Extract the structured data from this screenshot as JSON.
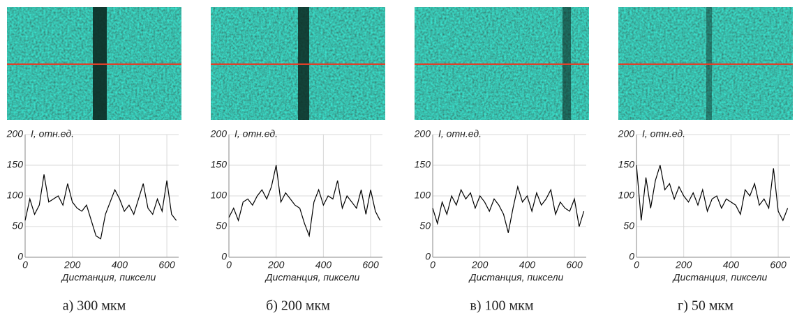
{
  "chart_data": [
    {
      "type": "line",
      "caption": "а) 300 мкм",
      "ylabel": "I, отн.ед.",
      "xlabel": "Дистанция, пиксели",
      "x": [
        0,
        20,
        40,
        60,
        80,
        100,
        120,
        140,
        160,
        180,
        200,
        220,
        240,
        260,
        280,
        300,
        320,
        340,
        360,
        380,
        400,
        420,
        440,
        460,
        480,
        500,
        520,
        540,
        560,
        580,
        600,
        620,
        640
      ],
      "series": [
        {
          "color": "#000000",
          "values": [
            60,
            95,
            70,
            85,
            135,
            90,
            95,
            100,
            85,
            120,
            90,
            80,
            75,
            85,
            60,
            35,
            30,
            70,
            90,
            110,
            95,
            75,
            85,
            70,
            95,
            120,
            80,
            70,
            95,
            75,
            125,
            70,
            60
          ]
        }
      ],
      "xlim": [
        0,
        650
      ],
      "xticks": [
        0,
        200,
        400,
        600
      ],
      "ylim": [
        0,
        200
      ],
      "yticks": [
        0,
        50,
        100,
        150,
        200
      ],
      "grid": true
    },
    {
      "type": "line",
      "caption": "б) 200 мкм",
      "ylabel": "I, отн.ед.",
      "xlabel": "Дистанция, пиксели",
      "x": [
        0,
        20,
        40,
        60,
        80,
        100,
        120,
        140,
        160,
        180,
        200,
        220,
        240,
        260,
        280,
        300,
        320,
        340,
        360,
        380,
        400,
        420,
        440,
        460,
        480,
        500,
        520,
        540,
        560,
        580,
        600,
        620,
        640
      ],
      "series": [
        {
          "color": "#000000",
          "values": [
            65,
            80,
            60,
            90,
            95,
            85,
            100,
            110,
            95,
            115,
            150,
            90,
            105,
            95,
            85,
            80,
            55,
            35,
            90,
            110,
            85,
            100,
            95,
            125,
            80,
            100,
            90,
            80,
            110,
            70,
            110,
            75,
            60
          ]
        }
      ],
      "xlim": [
        0,
        650
      ],
      "xticks": [
        0,
        200,
        400,
        600
      ],
      "ylim": [
        0,
        200
      ],
      "yticks": [
        0,
        50,
        100,
        150,
        200
      ],
      "grid": true
    },
    {
      "type": "line",
      "caption": "в) 100 мкм",
      "ylabel": "I, отн.ед.",
      "xlabel": "Дистанция, пиксели",
      "x": [
        0,
        20,
        40,
        60,
        80,
        100,
        120,
        140,
        160,
        180,
        200,
        220,
        240,
        260,
        280,
        300,
        320,
        340,
        360,
        380,
        400,
        420,
        440,
        460,
        480,
        500,
        520,
        540,
        560,
        580,
        600,
        620,
        640
      ],
      "series": [
        {
          "color": "#000000",
          "values": [
            80,
            55,
            90,
            70,
            100,
            85,
            110,
            95,
            105,
            80,
            100,
            90,
            75,
            95,
            85,
            70,
            40,
            80,
            115,
            90,
            100,
            75,
            105,
            85,
            95,
            110,
            70,
            90,
            80,
            75,
            95,
            50,
            75
          ]
        }
      ],
      "xlim": [
        0,
        650
      ],
      "xticks": [
        0,
        200,
        400,
        600
      ],
      "ylim": [
        0,
        200
      ],
      "yticks": [
        0,
        50,
        100,
        150,
        200
      ],
      "grid": true
    },
    {
      "type": "line",
      "caption": "г) 50 мкм",
      "ylabel": "I, отн.ед.",
      "xlabel": "Дистанция, пиксели",
      "x": [
        0,
        20,
        40,
        60,
        80,
        100,
        120,
        140,
        160,
        180,
        200,
        220,
        240,
        260,
        280,
        300,
        320,
        340,
        360,
        380,
        400,
        420,
        440,
        460,
        480,
        500,
        520,
        540,
        560,
        580,
        600,
        620,
        640
      ],
      "series": [
        {
          "color": "#000000",
          "values": [
            150,
            60,
            130,
            80,
            125,
            150,
            110,
            120,
            95,
            115,
            100,
            90,
            105,
            85,
            110,
            75,
            95,
            100,
            80,
            95,
            90,
            85,
            70,
            110,
            100,
            120,
            85,
            95,
            80,
            145,
            75,
            60,
            80
          ]
        }
      ],
      "xlim": [
        0,
        650
      ],
      "xticks": [
        0,
        200,
        400,
        600
      ],
      "ylim": [
        0,
        200
      ],
      "yticks": [
        0,
        50,
        100,
        150,
        200
      ],
      "grid": true
    }
  ]
}
